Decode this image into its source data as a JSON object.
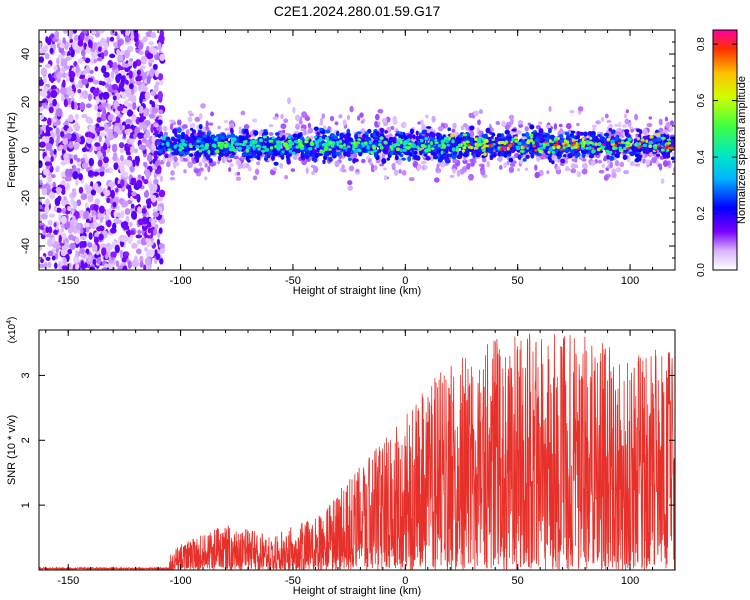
{
  "title": "C2E1.2024.280.01.59.G17",
  "colors": {
    "snr_line": "#e8302a",
    "axis": "#000000"
  },
  "chart_data": [
    {
      "type": "heatmap",
      "xlabel": "Height of straight line (km)",
      "ylabel": "Frequency (Hz)",
      "xlim": [
        -163,
        120
      ],
      "ylim": [
        -50,
        50
      ],
      "xticks": [
        -150,
        -100,
        -50,
        0,
        50,
        100
      ],
      "yticks": [
        -40,
        -20,
        0,
        20,
        40
      ],
      "colorbar": {
        "label": "Normalized spectral amplitude",
        "range": [
          0.0,
          0.85
        ],
        "ticks": [
          "0.0",
          "0.2",
          "0.4",
          "0.6",
          "0.8"
        ]
      },
      "regions": [
        {
          "x": [
            -163,
            -110
          ],
          "freq_spread": [
            -50,
            50
          ],
          "amplitude": "low (~0.05-0.15), scattered noise"
        },
        {
          "x": [
            -110,
            120
          ],
          "freq_center": 2,
          "freq_halfwidth": 6,
          "amplitude": "0.1-0.85, concentrated band near 0 Hz"
        }
      ]
    },
    {
      "type": "line",
      "xlabel": "Height of straight line (km)",
      "ylabel": "SNR (10 * v/v)",
      "yscale_label": "(x10",
      "yscale_exp": "4",
      "xlim": [
        -163,
        120
      ],
      "ylim": [
        0,
        3.7
      ],
      "xticks": [
        -150,
        -100,
        -50,
        0,
        50,
        100
      ],
      "yticks": [
        1,
        2,
        3
      ],
      "envelope": [
        {
          "x": -163,
          "y": 0.02
        },
        {
          "x": -110,
          "y": 0.03
        },
        {
          "x": -100,
          "y": 0.4
        },
        {
          "x": -80,
          "y": 0.7
        },
        {
          "x": -60,
          "y": 0.55
        },
        {
          "x": -40,
          "y": 0.8
        },
        {
          "x": -25,
          "y": 1.4
        },
        {
          "x": 0,
          "y": 2.4
        },
        {
          "x": 20,
          "y": 3.3
        },
        {
          "x": 40,
          "y": 3.6
        },
        {
          "x": 70,
          "y": 3.7
        },
        {
          "x": 100,
          "y": 3.4
        },
        {
          "x": 120,
          "y": 3.4
        }
      ]
    }
  ]
}
